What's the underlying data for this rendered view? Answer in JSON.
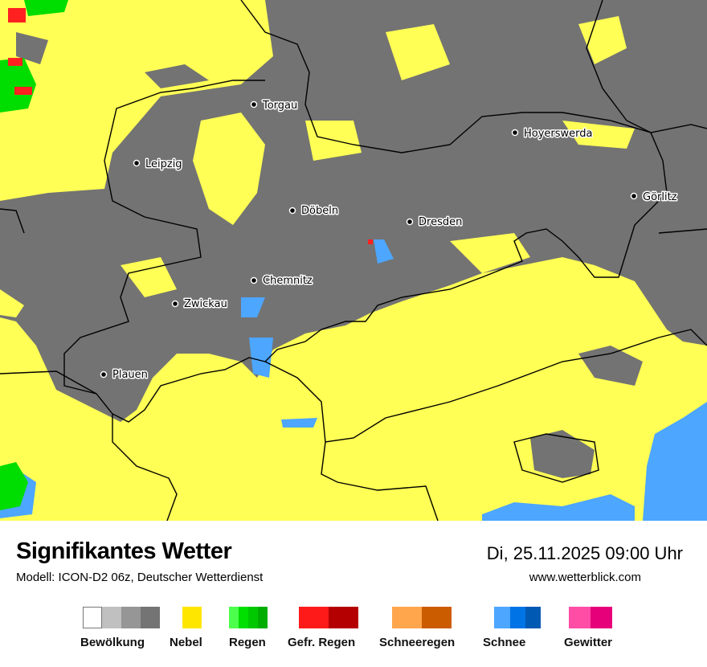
{
  "header": {
    "title": "Signifikantes Wetter",
    "model": "Modell: ICON-D2 06z, Deutscher Wetterdienst",
    "datetime": "Di, 25.11.2025 09:00 Uhr",
    "website": "www.wetterblick.com"
  },
  "map": {
    "colors": {
      "cloud": "#737373",
      "fog": "#ffff55",
      "snow": "#4da6ff",
      "rain": "#00dd00",
      "freezing_rain": "#ff2020",
      "border": "#000000"
    },
    "cities": [
      "Torgau",
      "Leipzig",
      "Hoyerswerda",
      "Görlitz",
      "Döbeln",
      "Dresden",
      "Chemnitz",
      "Zwickau",
      "Plauen"
    ]
  },
  "legend": [
    {
      "label": "Bewölkung",
      "colors": [
        "#ffffff",
        "#c0c0c0",
        "#969696",
        "#747474"
      ]
    },
    {
      "label": "Nebel",
      "colors": [
        "#ffe600"
      ]
    },
    {
      "label": "Regen",
      "colors": [
        "#4cff4c",
        "#00e000",
        "#00c800",
        "#00ad00"
      ]
    },
    {
      "label": "Gefr. Regen",
      "colors": [
        "#ff1a1a",
        "#b40000"
      ]
    },
    {
      "label": "Schneeregen",
      "colors": [
        "#ffa64d",
        "#cc5c00"
      ]
    },
    {
      "label": "Schnee",
      "colors": [
        "#4da6ff",
        "#0073e6",
        "#0059b3"
      ]
    },
    {
      "label": "Gewitter",
      "colors": [
        "#ff4da6",
        "#e6007a"
      ]
    }
  ]
}
